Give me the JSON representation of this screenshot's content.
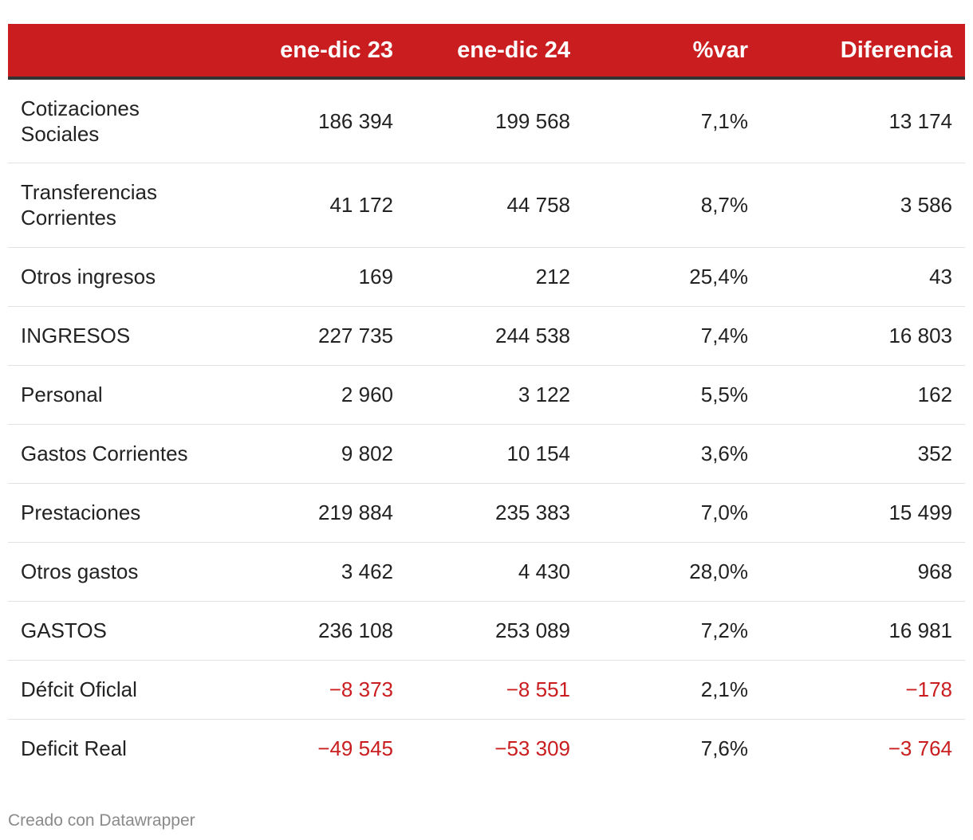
{
  "chart_data": {
    "type": "table",
    "columns": [
      "",
      "ene-dic 23",
      "ene-dic 24",
      "%var",
      "Diferencia"
    ],
    "rows": [
      {
        "label": "Cotizaciones Sociales",
        "label_lines": [
          "Cotizaciones",
          "Sociales"
        ],
        "v23": "186 394",
        "v24": "199 568",
        "var": "7,1%",
        "dif": "13 174"
      },
      {
        "label": "Transferencias Corrientes",
        "label_lines": [
          "Transferencias",
          "Corrientes"
        ],
        "v23": "41 172",
        "v24": "44 758",
        "var": "8,7%",
        "dif": "3 586"
      },
      {
        "label": "Otros ingresos",
        "v23": "169",
        "v24": "212",
        "var": "25,4%",
        "dif": "43"
      },
      {
        "label": "INGRESOS",
        "v23": "227 735",
        "v24": "244 538",
        "var": "7,4%",
        "dif": "16 803"
      },
      {
        "label": "Personal",
        "v23": "2 960",
        "v24": "3 122",
        "var": "5,5%",
        "dif": "162"
      },
      {
        "label": "Gastos Corrientes",
        "v23": "9 802",
        "v24": "10 154",
        "var": "3,6%",
        "dif": "352"
      },
      {
        "label": "Prestaciones",
        "v23": "219 884",
        "v24": "235 383",
        "var": "7,0%",
        "dif": "15 499"
      },
      {
        "label": "Otros gastos",
        "v23": "3 462",
        "v24": "4 430",
        "var": "28,0%",
        "dif": "968"
      },
      {
        "label": "GASTOS",
        "v23": "236 108",
        "v24": "253 089",
        "var": "7,2%",
        "dif": "16 981"
      },
      {
        "label": "Défcit Oficlal",
        "v23": "−8 373",
        "v24": "−8 551",
        "var": "2,1%",
        "dif": "−178"
      },
      {
        "label": "Deficit Real",
        "v23": "−49 545",
        "v24": "−53 309",
        "var": "7,6%",
        "dif": "−3 764"
      }
    ]
  },
  "footer": {
    "credit": "Creado con Datawrapper"
  },
  "colors": {
    "header_bg": "#c91d1f",
    "negative": "#c91d1f",
    "text": "#222222"
  }
}
